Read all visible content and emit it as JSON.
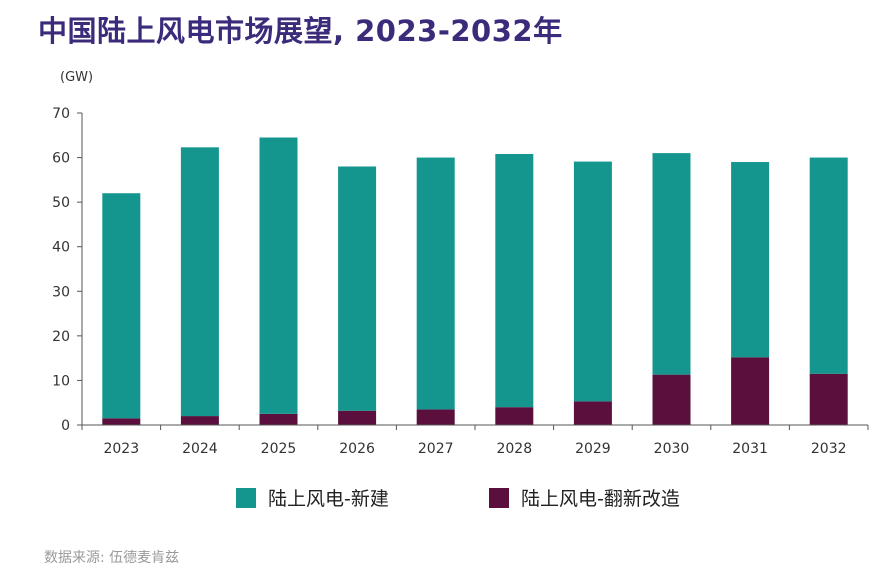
{
  "chart_data": {
    "type": "bar",
    "stacked": true,
    "title": "中国陆上风电市场展望, 2023-2032年",
    "unit_label": "(GW)",
    "categories": [
      "2023",
      "2024",
      "2025",
      "2026",
      "2027",
      "2028",
      "2029",
      "2030",
      "2031",
      "2032"
    ],
    "series": [
      {
        "name": "陆上风电-翻新改造",
        "color": "#5a0f3c",
        "values": [
          1.5,
          2,
          2.5,
          3.2,
          3.5,
          4,
          5.3,
          11.3,
          15.2,
          11.5
        ]
      },
      {
        "name": "陆上风电-新建",
        "color": "#14968f",
        "values": [
          50.5,
          60.3,
          62,
          54.8,
          56.5,
          56.8,
          53.8,
          49.7,
          43.8,
          48.5
        ]
      }
    ],
    "ylim": [
      0,
      70
    ],
    "yticks": [
      0,
      10,
      20,
      30,
      40,
      50,
      60,
      70
    ],
    "grid": false,
    "legend_position": "bottom"
  },
  "legend_order": [
    1,
    0
  ],
  "source": "数据来源: 伍德麦肯兹"
}
